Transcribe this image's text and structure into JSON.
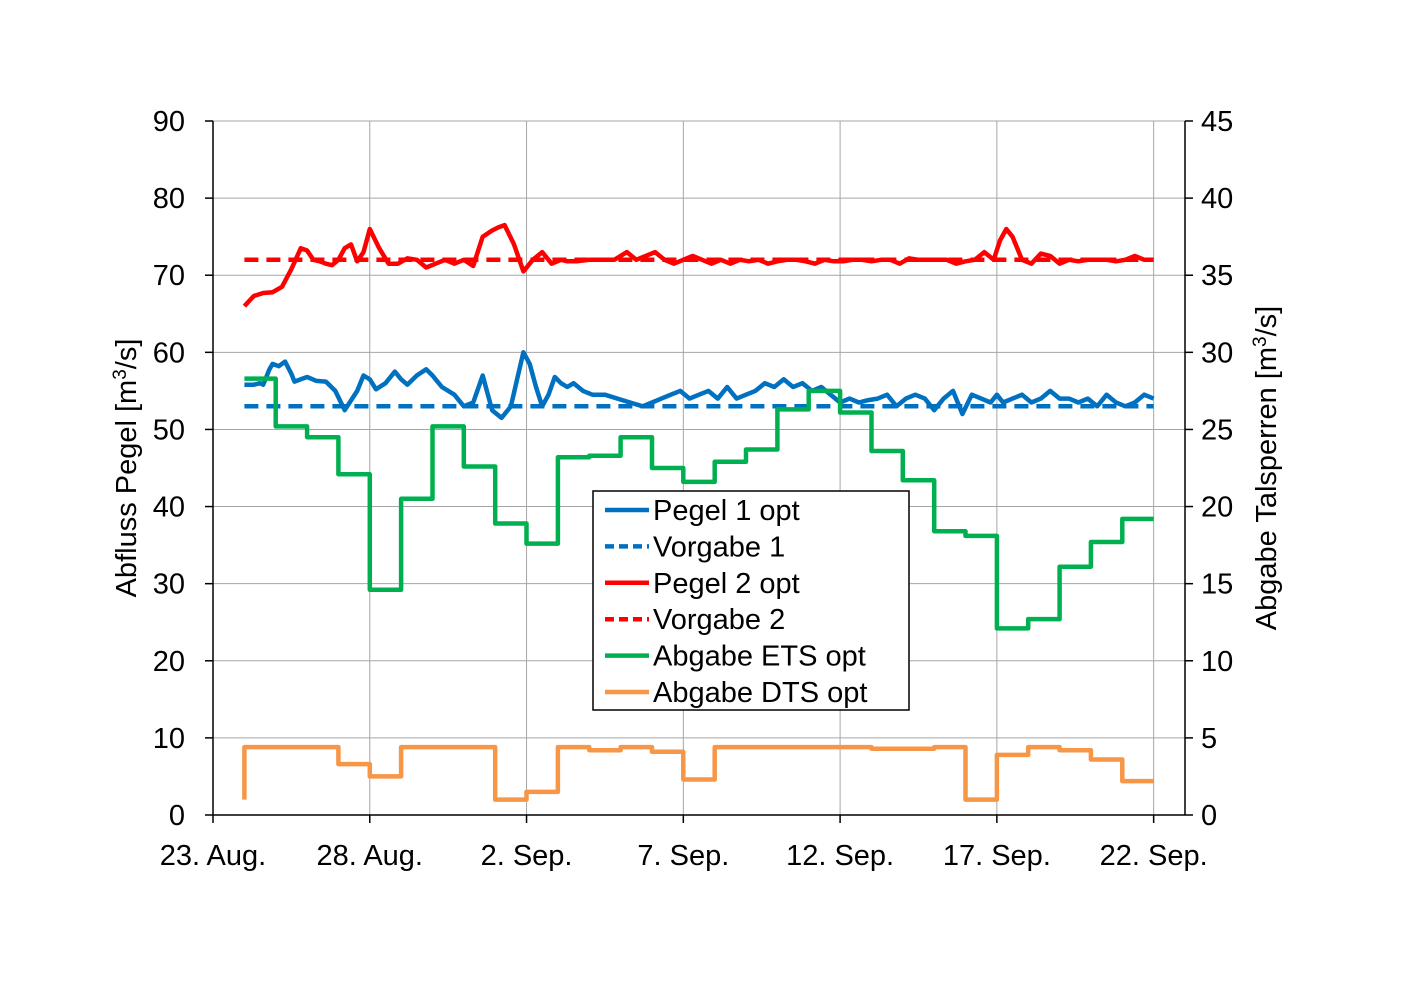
{
  "chart_data": {
    "type": "line",
    "title": "",
    "y_left": {
      "label": "Abfluss Pegel [m³/s]",
      "label_parts": [
        "Abfluss Pegel [m",
        "3",
        "/s]"
      ],
      "range": [
        0,
        90
      ],
      "ticks": [
        "0",
        "10",
        "20",
        "30",
        "40",
        "50",
        "60",
        "70",
        "80",
        "90"
      ]
    },
    "y_right": {
      "label": "Abgabe Talsperren [m³/s]",
      "label_parts": [
        "Abgabe Talsperren [m",
        "3",
        "/s]"
      ],
      "range": [
        0,
        45
      ],
      "ticks": [
        "0",
        "5",
        "10",
        "15",
        "20",
        "25",
        "30",
        "35",
        "40",
        "45"
      ]
    },
    "x_axis": {
      "range_days": [
        0,
        31
      ],
      "tick_days": [
        0,
        5,
        10,
        15,
        20,
        25,
        30
      ],
      "tick_labels": [
        "23. Aug.",
        "28. Aug.",
        "2. Sep.",
        "7. Sep.",
        "12. Sep.",
        "17. Sep.",
        "22. Sep."
      ]
    },
    "grid": true,
    "legend_position": "center",
    "series": [
      {
        "name": "Pegel 1 opt",
        "axis": "left",
        "color": "#0070C0",
        "dash": "solid",
        "x": [
          1.0,
          1.3,
          1.5,
          1.6,
          1.8,
          1.9,
          2.1,
          2.3,
          2.5,
          2.6,
          2.8,
          3.0,
          3.3,
          3.6,
          3.9,
          4.2,
          4.6,
          4.8,
          5.0,
          5.2,
          5.5,
          5.8,
          6.0,
          6.2,
          6.5,
          6.8,
          7.0,
          7.3,
          7.7,
          8.0,
          8.3,
          8.6,
          8.9,
          9.2,
          9.5,
          9.7,
          9.9,
          10.1,
          10.3,
          10.5,
          10.7,
          10.9,
          11.1,
          11.3,
          11.5,
          11.8,
          12.1,
          12.5,
          12.9,
          13.3,
          13.7,
          14.0,
          14.3,
          14.6,
          14.9,
          15.2,
          15.5,
          15.8,
          16.1,
          16.4,
          16.7,
          17.0,
          17.3,
          17.6,
          17.9,
          18.2,
          18.5,
          18.8,
          19.1,
          19.4,
          19.7,
          20.0,
          20.3,
          20.6,
          20.9,
          21.2,
          21.5,
          21.8,
          22.1,
          22.4,
          22.7,
          23.0,
          23.3,
          23.6,
          23.9,
          24.2,
          24.5,
          24.8,
          25.0,
          25.2,
          25.5,
          25.8,
          26.1,
          26.4,
          26.7,
          27.0,
          27.3,
          27.6,
          27.9,
          28.2,
          28.5,
          28.8,
          29.1,
          29.4,
          29.7,
          30.0
        ],
        "y": [
          55.8,
          55.8,
          56.0,
          55.8,
          57.8,
          58.5,
          58.2,
          58.8,
          57.2,
          56.2,
          56.5,
          56.8,
          56.3,
          56.2,
          55.0,
          52.5,
          55.0,
          57.0,
          56.5,
          55.2,
          56.0,
          57.5,
          56.5,
          55.8,
          57.0,
          57.8,
          57.0,
          55.5,
          54.5,
          53.0,
          53.5,
          57.0,
          52.5,
          51.5,
          53.0,
          56.5,
          60.0,
          58.5,
          55.5,
          53.0,
          54.5,
          56.8,
          56.0,
          55.5,
          56.0,
          55.0,
          54.5,
          54.5,
          54.0,
          53.5,
          53.0,
          53.5,
          54.0,
          54.5,
          55.0,
          54.0,
          54.5,
          55.0,
          54.0,
          55.5,
          54.0,
          54.5,
          55.0,
          56.0,
          55.5,
          56.5,
          55.5,
          56.0,
          55.0,
          55.5,
          54.5,
          53.5,
          54.0,
          53.5,
          53.8,
          54.0,
          54.5,
          53.0,
          54.0,
          54.5,
          54.0,
          52.5,
          54.0,
          55.0,
          52.0,
          54.5,
          54.0,
          53.5,
          54.5,
          53.5,
          54.0,
          54.5,
          53.5,
          54.0,
          55.0,
          54.0,
          54.0,
          53.5,
          54.0,
          53.0,
          54.5,
          53.5,
          53.0,
          53.5,
          54.5,
          54.0
        ]
      },
      {
        "name": "Vorgabe 1",
        "axis": "left",
        "color": "#0070C0",
        "dash": "dashed",
        "x": [
          1.0,
          30.0
        ],
        "y": [
          53.0,
          53.0
        ]
      },
      {
        "name": "Pegel 2 opt",
        "axis": "left",
        "color": "#FF0000",
        "dash": "solid",
        "x": [
          1.0,
          1.3,
          1.6,
          1.9,
          2.2,
          2.5,
          2.8,
          3.0,
          3.2,
          3.4,
          3.6,
          3.8,
          4.0,
          4.2,
          4.4,
          4.6,
          4.8,
          5.0,
          5.3,
          5.6,
          5.9,
          6.2,
          6.5,
          6.8,
          7.1,
          7.4,
          7.7,
          8.0,
          8.3,
          8.6,
          8.9,
          9.1,
          9.3,
          9.6,
          9.9,
          10.2,
          10.5,
          10.8,
          11.1,
          11.3,
          11.6,
          12.0,
          12.4,
          12.8,
          13.2,
          13.5,
          13.8,
          14.1,
          14.4,
          14.7,
          15.0,
          15.3,
          15.6,
          15.9,
          16.2,
          16.5,
          16.8,
          17.1,
          17.4,
          17.7,
          18.0,
          18.3,
          18.6,
          18.9,
          19.2,
          19.5,
          19.8,
          20.1,
          20.4,
          20.7,
          21.0,
          21.3,
          21.6,
          21.9,
          22.2,
          22.5,
          22.8,
          23.1,
          23.4,
          23.7,
          24.0,
          24.3,
          24.6,
          24.9,
          25.1,
          25.3,
          25.5,
          25.8,
          26.1,
          26.4,
          26.7,
          27.0,
          27.3,
          27.6,
          27.9,
          28.2,
          28.5,
          28.8,
          29.1,
          29.4,
          29.7,
          30.0
        ],
        "y": [
          66.0,
          67.3,
          67.7,
          67.8,
          68.5,
          70.8,
          73.5,
          73.2,
          72.0,
          71.8,
          71.5,
          71.3,
          72.0,
          73.5,
          74.0,
          71.8,
          73.0,
          76.0,
          73.5,
          71.5,
          71.5,
          72.2,
          72.0,
          71.0,
          71.5,
          72.0,
          71.5,
          72.0,
          71.2,
          75.0,
          75.8,
          76.2,
          76.5,
          74.0,
          70.5,
          72.0,
          73.0,
          71.5,
          72.0,
          71.8,
          71.8,
          72.0,
          72.0,
          72.0,
          73.0,
          72.0,
          72.5,
          73.0,
          72.0,
          71.5,
          72.0,
          72.5,
          72.0,
          71.5,
          72.0,
          71.5,
          72.0,
          71.8,
          72.0,
          71.5,
          71.8,
          72.0,
          72.0,
          71.8,
          71.5,
          72.0,
          71.8,
          71.8,
          72.0,
          72.0,
          71.8,
          72.0,
          72.0,
          71.5,
          72.2,
          72.0,
          72.0,
          72.0,
          72.0,
          71.5,
          71.8,
          72.0,
          73.0,
          72.0,
          74.5,
          76.0,
          75.0,
          72.0,
          71.5,
          72.8,
          72.5,
          71.5,
          72.0,
          71.8,
          72.0,
          72.0,
          72.0,
          71.8,
          72.0,
          72.5,
          72.0,
          72.0
        ]
      },
      {
        "name": "Vorgabe 2",
        "axis": "left",
        "color": "#FF0000",
        "dash": "dashed",
        "x": [
          1.0,
          30.0
        ],
        "y": [
          72.0,
          72.0
        ]
      },
      {
        "name": "Abgabe ETS opt",
        "axis": "right",
        "color": "#00B050",
        "dash": "solid",
        "step": true,
        "x": [
          1.0,
          2.0,
          3.0,
          4.0,
          5.0,
          6.0,
          7.0,
          8.0,
          9.0,
          10.0,
          11.0,
          12.0,
          13.0,
          14.0,
          15.0,
          16.0,
          17.0,
          18.0,
          19.0,
          20.0,
          21.0,
          22.0,
          23.0,
          24.0,
          25.0,
          26.0,
          27.0,
          28.0,
          29.0,
          30.0
        ],
        "y": [
          28.3,
          25.2,
          24.5,
          22.1,
          14.6,
          20.5,
          25.2,
          22.6,
          18.9,
          17.6,
          23.2,
          23.3,
          24.5,
          22.5,
          21.6,
          22.9,
          23.7,
          26.3,
          27.5,
          26.1,
          23.6,
          21.7,
          18.4,
          18.1,
          12.1,
          12.7,
          16.1,
          17.7,
          19.2,
          19.2
        ]
      },
      {
        "name": "Abgabe DTS opt",
        "axis": "right",
        "color": "#F79646",
        "dash": "solid",
        "step": true,
        "x": [
          1.0,
          2.0,
          3.0,
          4.0,
          5.0,
          6.0,
          7.0,
          8.0,
          9.0,
          10.0,
          11.0,
          12.0,
          13.0,
          14.0,
          15.0,
          16.0,
          17.0,
          18.0,
          19.0,
          20.0,
          21.0,
          22.0,
          23.0,
          24.0,
          25.0,
          26.0,
          27.0,
          28.0,
          29.0,
          30.0
        ],
        "y": [
          4.4,
          4.4,
          4.4,
          3.3,
          2.5,
          4.4,
          4.4,
          4.4,
          1.0,
          1.5,
          4.4,
          4.2,
          4.4,
          4.1,
          2.3,
          4.4,
          4.4,
          4.4,
          4.4,
          4.4,
          4.3,
          4.3,
          4.4,
          1.0,
          3.9,
          4.4,
          4.2,
          3.6,
          2.2,
          2.2
        ]
      }
    ]
  }
}
